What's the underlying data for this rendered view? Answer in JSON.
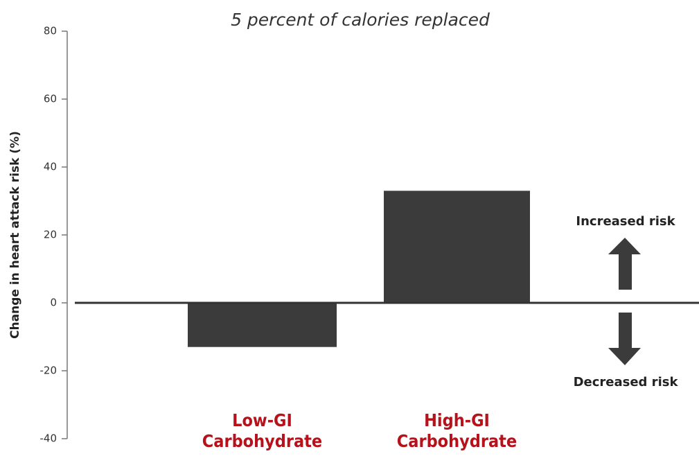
{
  "chart_data": {
    "type": "bar",
    "title": "5 percent of calories replaced",
    "y_label": "Change in heart attack risk (%)",
    "categories": [
      "Low-GI Carbohydrate",
      "High-GI Carbohydrate"
    ],
    "values": [
      -13,
      33
    ],
    "color": "#3b3b3b",
    "category_color": "#b5121b",
    "ylim": [
      -40,
      80
    ],
    "yticks": [
      -40,
      -20,
      0,
      20,
      40,
      60,
      80
    ],
    "annotations": [
      "Increased risk",
      "Decreased risk"
    ]
  }
}
